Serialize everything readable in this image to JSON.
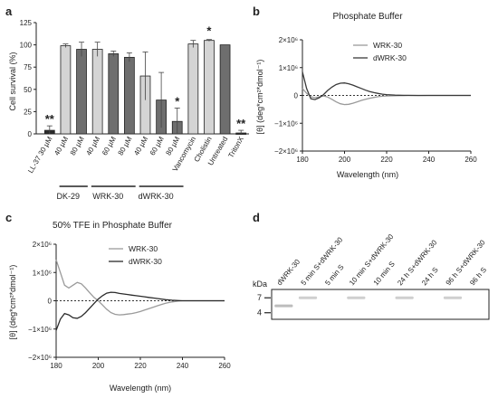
{
  "panels": {
    "a": "a",
    "b": "b",
    "c": "c",
    "d": "d"
  },
  "chart_data": [
    {
      "panel": "a",
      "type": "bar",
      "ylabel": "Cell survival (%)",
      "ylim": [
        0,
        125
      ],
      "yticks": [
        0,
        25,
        50,
        75,
        100,
        125
      ],
      "categories": [
        "LL-37 30 µM",
        "40 µM",
        "80 µM",
        "40 µM",
        "60 µM",
        "80 µM",
        "40 µM",
        "60 µM",
        "80 µM",
        "Vancomycin",
        "Cholistin",
        "Untreated",
        "TritonX"
      ],
      "values": [
        4,
        99,
        95,
        95,
        90,
        86,
        65,
        38,
        14,
        101,
        105,
        100,
        1
      ],
      "errors": [
        5,
        2,
        8,
        8,
        3,
        5,
        27,
        31,
        15,
        4,
        1,
        0,
        3
      ],
      "colors": [
        "#2b2b2b",
        "#d4d4d4",
        "#6e6e6e",
        "#d4d4d4",
        "#6e6e6e",
        "#6e6e6e",
        "#d4d4d4",
        "#6e6e6e",
        "#6e6e6e",
        "#d4d4d4",
        "#d4d4d4",
        "#6e6e6e",
        "#2b2b2b"
      ],
      "significance": [
        "**",
        "",
        "",
        "",
        "",
        "",
        "",
        "",
        "*",
        "",
        "*",
        "",
        "**"
      ],
      "groups": [
        {
          "label": "DK-29",
          "start": 1,
          "end": 2
        },
        {
          "label": "WRK-30",
          "start": 3,
          "end": 5
        },
        {
          "label": "dWRK-30",
          "start": 6,
          "end": 8
        }
      ]
    },
    {
      "panel": "b",
      "type": "line",
      "title": "Phosphate Buffer",
      "xlabel": "Wavelength (nm)",
      "ylabel": "[θ] (deg*cm²*dmol⁻¹)",
      "xlim": [
        180,
        260
      ],
      "ylim": [
        -2000000,
        2000000
      ],
      "xticks": [
        180,
        200,
        220,
        240,
        260
      ],
      "yticks": [
        {
          "v": 2000000,
          "label": "2×10⁶"
        },
        {
          "v": 1000000,
          "label": "1×10⁶"
        },
        {
          "v": 0,
          "label": "0"
        },
        {
          "v": -1000000,
          "label": "−1×10⁶"
        },
        {
          "v": -2000000,
          "label": "−2×10⁶"
        }
      ],
      "legend_position": "top-right",
      "series": [
        {
          "name": "WRK-30",
          "color": "#9a9a9a",
          "x": [
            180,
            182,
            184,
            186,
            188,
            190,
            192,
            194,
            196,
            198,
            200,
            202,
            204,
            206,
            208,
            210,
            212,
            214,
            216,
            218,
            220,
            222,
            224,
            226,
            228,
            230,
            235,
            240,
            245,
            250,
            255,
            260
          ],
          "y": [
            250000,
            80000,
            -50000,
            -80000,
            -50000,
            -20000,
            -60000,
            -140000,
            -230000,
            -300000,
            -330000,
            -320000,
            -280000,
            -230000,
            -180000,
            -140000,
            -100000,
            -70000,
            -45000,
            -30000,
            -20000,
            -15000,
            -10000,
            -8000,
            -5000,
            -3000,
            -2000,
            -1000,
            0,
            0,
            0,
            0
          ]
        },
        {
          "name": "dWRK-30",
          "color": "#3a3a3a",
          "x": [
            180,
            182,
            184,
            186,
            188,
            190,
            192,
            194,
            196,
            198,
            200,
            202,
            204,
            206,
            208,
            210,
            212,
            214,
            216,
            218,
            220,
            222,
            224,
            226,
            228,
            230,
            235,
            240,
            245,
            250,
            255,
            260
          ],
          "y": [
            850000,
            250000,
            -120000,
            -150000,
            -80000,
            30000,
            180000,
            300000,
            390000,
            440000,
            450000,
            420000,
            370000,
            310000,
            250000,
            190000,
            140000,
            100000,
            70000,
            45000,
            30000,
            18000,
            10000,
            6000,
            3000,
            2000,
            1000,
            0,
            0,
            0,
            0,
            0
          ]
        }
      ]
    },
    {
      "panel": "c",
      "type": "line",
      "title": "50% TFE in Phosphate Buffer",
      "xlabel": "Wavelength (nm)",
      "ylabel": "[θ] (deg*cm²*dmol⁻¹)",
      "xlim": [
        180,
        260
      ],
      "ylim": [
        -2000000,
        2000000
      ],
      "xticks": [
        180,
        200,
        220,
        240,
        260
      ],
      "yticks": [
        {
          "v": 2000000,
          "label": "2×10⁶"
        },
        {
          "v": 1000000,
          "label": "1×10⁶"
        },
        {
          "v": 0,
          "label": "0"
        },
        {
          "v": -1000000,
          "label": "−1×10⁶"
        },
        {
          "v": -2000000,
          "label": "−2×10⁶"
        }
      ],
      "legend_position": "top-right",
      "series": [
        {
          "name": "WRK-30",
          "color": "#9a9a9a",
          "x": [
            180,
            182,
            184,
            186,
            188,
            190,
            192,
            194,
            196,
            198,
            200,
            202,
            204,
            206,
            208,
            210,
            212,
            214,
            216,
            218,
            220,
            222,
            224,
            226,
            228,
            230,
            232,
            235,
            238,
            240,
            245,
            250,
            255,
            260
          ],
          "y": [
            1450000,
            1000000,
            550000,
            450000,
            550000,
            650000,
            600000,
            450000,
            280000,
            120000,
            0,
            -150000,
            -300000,
            -420000,
            -480000,
            -500000,
            -490000,
            -470000,
            -450000,
            -420000,
            -380000,
            -330000,
            -280000,
            -230000,
            -180000,
            -130000,
            -90000,
            -40000,
            -10000,
            0,
            0,
            0,
            0,
            0
          ]
        },
        {
          "name": "dWRK-30",
          "color": "#2b2b2b",
          "x": [
            180,
            182,
            184,
            186,
            188,
            190,
            192,
            194,
            196,
            198,
            200,
            202,
            204,
            206,
            208,
            210,
            212,
            214,
            216,
            218,
            220,
            222,
            224,
            226,
            228,
            230,
            232,
            235,
            238,
            240,
            245,
            250,
            255,
            260
          ],
          "y": [
            -1050000,
            -650000,
            -450000,
            -500000,
            -600000,
            -620000,
            -550000,
            -420000,
            -260000,
            -100000,
            60000,
            180000,
            270000,
            300000,
            290000,
            260000,
            240000,
            220000,
            200000,
            180000,
            160000,
            140000,
            120000,
            100000,
            80000,
            60000,
            40000,
            20000,
            5000,
            0,
            0,
            0,
            0,
            0
          ]
        }
      ]
    }
  ],
  "gel": {
    "kda_label": "kDa",
    "markers": [
      {
        "label": "7",
        "level": 0.28
      },
      {
        "label": "4",
        "level": 0.78
      }
    ],
    "lanes": [
      "dWRK-30",
      "5 min S+dWRK-30",
      "5 min S",
      "10 min S+dWRK-30",
      "10 min S",
      "24 h S+dWRK-30",
      "24 h S",
      "96 h S+dWRK-30",
      "96 h S"
    ],
    "bands": [
      {
        "lane": 0,
        "level": 0.55
      },
      {
        "lane": 1,
        "level": 0.28
      },
      {
        "lane": 3,
        "level": 0.28
      },
      {
        "lane": 5,
        "level": 0.28
      },
      {
        "lane": 7,
        "level": 0.28
      }
    ]
  }
}
